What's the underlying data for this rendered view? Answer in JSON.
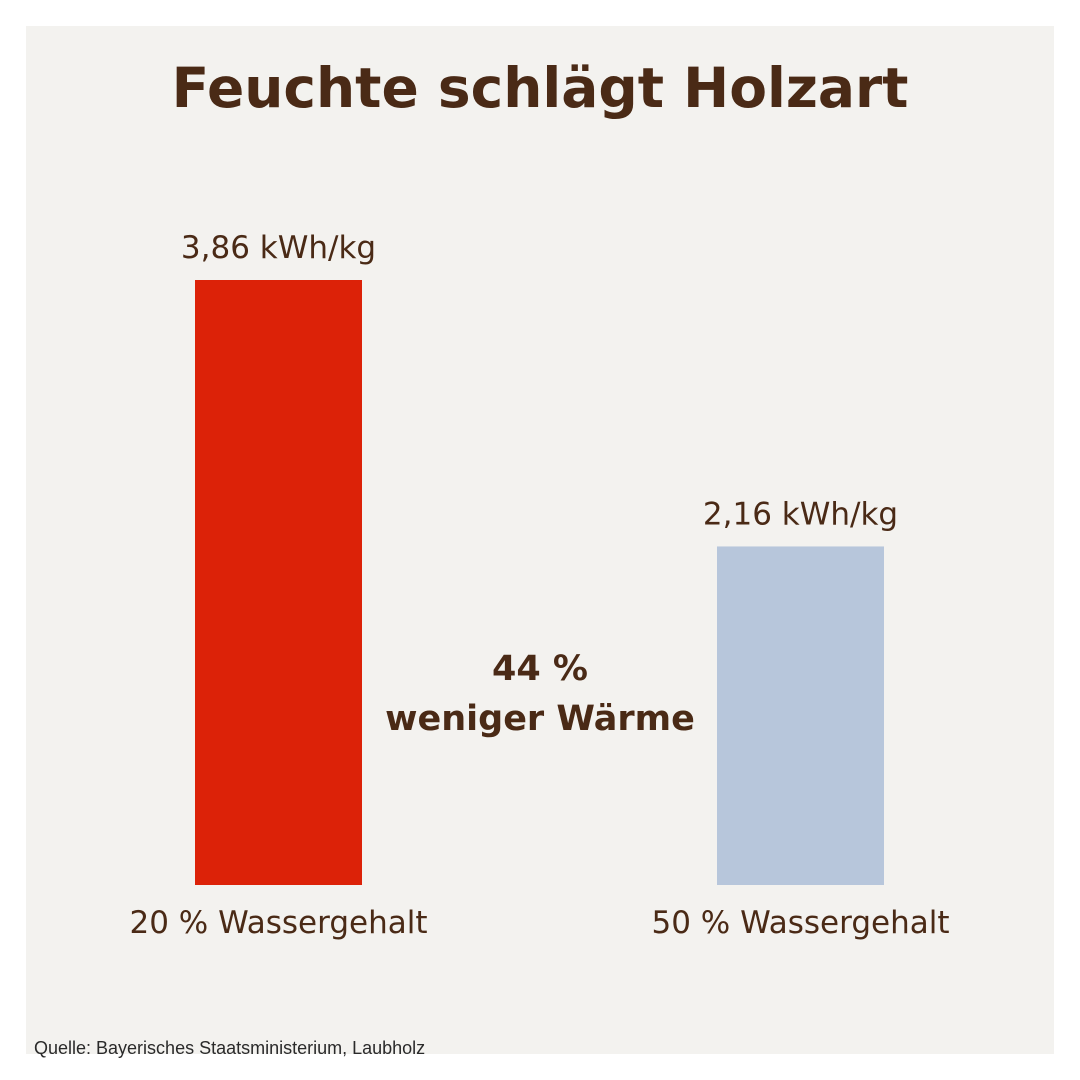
{
  "chart_data": {
    "type": "bar",
    "title": "Feuchte schlägt Holzart",
    "categories": [
      "20 % Wassergehalt",
      "50 % Wassergehalt"
    ],
    "values": [
      3.86,
      2.16
    ],
    "value_labels": [
      "3,86 kWh/kg",
      "2,16 kWh/kg"
    ],
    "colors": [
      "#dc2208",
      "#b7c6db"
    ],
    "ylim": [
      0,
      3.86
    ],
    "grid": false,
    "annotation": {
      "line1": "44 %",
      "line2": "weniger Wärme"
    }
  },
  "source": "Quelle: Bayerisches Staatsministerium, Laubholz"
}
